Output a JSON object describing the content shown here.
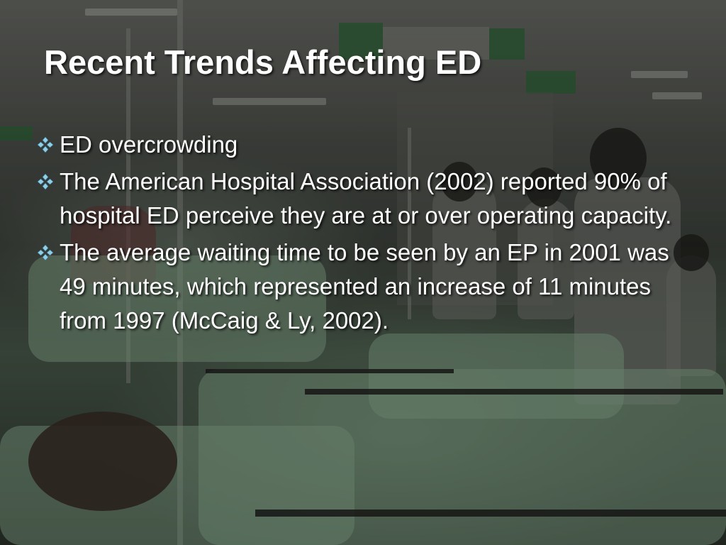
{
  "slide": {
    "title": "Recent Trends Affecting ED",
    "bullets": [
      {
        "text": "ED overcrowding",
        "icon": "diamond-bullet-icon"
      },
      {
        "text": "The American Hospital Association (2002) reported 90% of hospital ED perceive they are at or over operating capacity.",
        "icon": "diamond-bullet-icon"
      },
      {
        "text": "The average waiting time to be seen by an EP in 2001 was 49 minutes, which represented an increase of 11 minutes from 1997 (McCaig & Ly, 2002).",
        "icon": "diamond-bullet-icon"
      }
    ],
    "colors": {
      "text": "#ffffff",
      "bullet_icon": "#8fd0e8"
    }
  }
}
